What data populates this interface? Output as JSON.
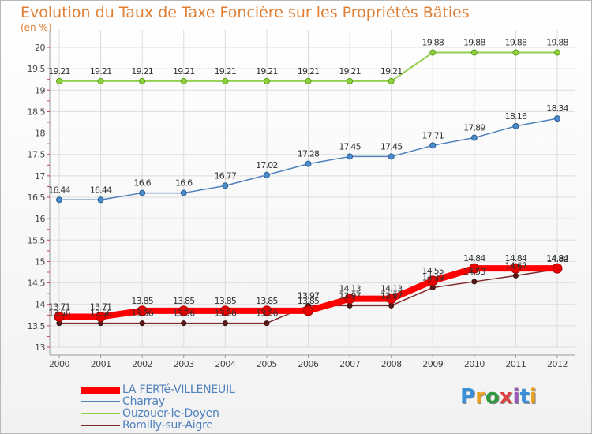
{
  "title": "Evolution du Taux de Taxe Foncière sur les Propriétés Bâties",
  "subtitle": "(en %)",
  "logo_text": "Proxiti",
  "chart_data": {
    "type": "line",
    "title": "Evolution du Taux de Taxe Foncière sur les Propriétés Bâties",
    "ylabel": "(en %)",
    "xlabel": "",
    "x": [
      2000,
      2001,
      2002,
      2003,
      2004,
      2005,
      2006,
      2007,
      2008,
      2009,
      2010,
      2011,
      2012
    ],
    "y_ticks": [
      13,
      13.5,
      14,
      14.5,
      15,
      15.5,
      16,
      16.5,
      17,
      17.5,
      18,
      18.5,
      19,
      19.5,
      20
    ],
    "ylim": [
      13,
      20
    ],
    "grid": true,
    "legend_position": "bottom-left",
    "series": [
      {
        "name": "LA FERTé-VILLENEUIL",
        "color": "#ff0000",
        "values": [
          13.71,
          13.71,
          13.85,
          13.85,
          13.85,
          13.85,
          13.85,
          14.13,
          14.13,
          14.55,
          14.84,
          14.84,
          14.84
        ],
        "labels": [
          "13.71",
          "13.71",
          "13.85",
          "13.85",
          "13.85",
          "13.85",
          "13.85",
          "14.13",
          "14.13",
          "14.55",
          "14.84",
          "14.84",
          "14.84"
        ]
      },
      {
        "name": "Charray",
        "color": "#4f81bd",
        "values": [
          16.44,
          16.44,
          16.6,
          16.6,
          16.77,
          17.02,
          17.28,
          17.45,
          17.45,
          17.71,
          17.89,
          18.16,
          18.34
        ],
        "labels": [
          "16.44",
          "16.44",
          "16.6",
          "16.6",
          "16.77",
          "17.02",
          "17.28",
          "17.45",
          "17.45",
          "17.71",
          "17.89",
          "18.16",
          "18.34"
        ]
      },
      {
        "name": "Ouzouer-le-Doyen",
        "color": "#92d050",
        "values": [
          19.21,
          19.21,
          19.21,
          19.21,
          19.21,
          19.21,
          19.21,
          19.21,
          19.21,
          19.88,
          19.88,
          19.88,
          19.88
        ],
        "labels": [
          "19.21",
          "19.21",
          "19.21",
          "19.21",
          "19.21",
          "19.21",
          "19.21",
          "19.21",
          "19.21",
          "19.88",
          "19.88",
          "19.88",
          "19.88"
        ]
      },
      {
        "name": "Romilly-sur-Aigre",
        "color": "#7f2b2b",
        "values": [
          13.56,
          13.56,
          13.56,
          13.56,
          13.56,
          13.56,
          13.97,
          13.97,
          13.97,
          14.39,
          14.53,
          14.67,
          14.82
        ],
        "labels": [
          "13.56",
          "13.56",
          "13.56",
          "13.56",
          "13.56",
          "13.56",
          "13.97",
          "13.97",
          "13.97",
          "14.39",
          "14.53",
          "14.67",
          "14.82"
        ]
      }
    ]
  }
}
